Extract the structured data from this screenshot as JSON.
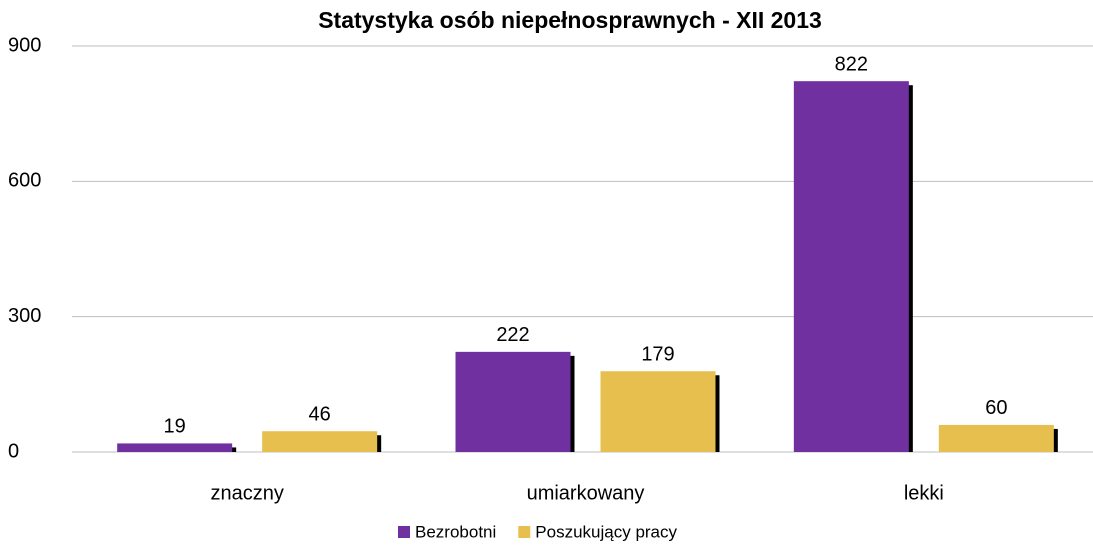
{
  "chart_data": {
    "type": "bar",
    "title": "Statystyka osób niepełnosprawnych - XII 2013",
    "categories": [
      "znaczny",
      "umiarkowany",
      "lekki"
    ],
    "series": [
      {
        "name": "Bezrobotni",
        "color": "#7030a0",
        "values": [
          19,
          222,
          822
        ]
      },
      {
        "name": "Poszukujący pracy",
        "color": "#e6bf4e",
        "values": [
          46,
          179,
          60
        ]
      }
    ],
    "ylim": [
      0,
      900
    ],
    "yticks": [
      0,
      300,
      600,
      900
    ],
    "grid": true,
    "legend": "bottom"
  }
}
